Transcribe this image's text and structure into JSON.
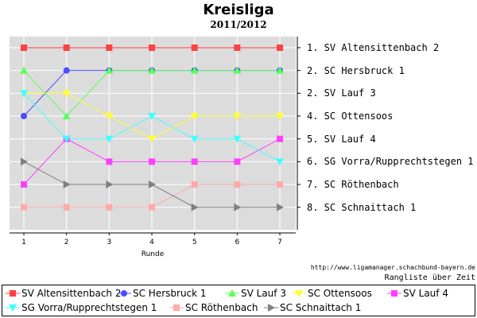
{
  "chart_data": {
    "type": "line",
    "title": "Kreisliga",
    "subtitle": "2011/2012",
    "xlabel": "Runde",
    "ylabel": "",
    "x": [
      1,
      2,
      3,
      4,
      5,
      6,
      7
    ],
    "ylim": [
      1,
      9
    ],
    "y_inverted": true,
    "grid": true,
    "legend_position": "bottom",
    "series": [
      {
        "name": "SV Altensittenbach 2",
        "color": "#ff4040",
        "marker": "square",
        "values": [
          1,
          1,
          1,
          1,
          1,
          1,
          1
        ]
      },
      {
        "name": "SC Hersbruck 1",
        "color": "#4d4dff",
        "marker": "circle",
        "values": [
          4,
          2,
          2,
          2,
          2,
          2,
          2
        ]
      },
      {
        "name": "SV Lauf 3",
        "color": "#5aff5a",
        "marker": "triangle-up",
        "values": [
          2,
          4,
          2,
          2,
          2,
          2,
          2
        ]
      },
      {
        "name": "SC Ottensoos",
        "color": "#ffff33",
        "marker": "triangle-down",
        "values": [
          3,
          3,
          4,
          5,
          4,
          4,
          4
        ]
      },
      {
        "name": "SV Lauf 4",
        "color": "#ff40ff",
        "marker": "square",
        "values": [
          7,
          5,
          6,
          6,
          6,
          6,
          5
        ]
      },
      {
        "name": "SG Vorra/Rupprechtstegen 1",
        "color": "#40ffff",
        "marker": "triangle-down",
        "values": [
          3,
          5,
          5,
          4,
          5,
          5,
          6
        ]
      },
      {
        "name": "SC Röthenbach",
        "color": "#ffaaaa",
        "marker": "square",
        "values": [
          8,
          8,
          8,
          8,
          7,
          7,
          7
        ]
      },
      {
        "name": "SC Schnaittach 1",
        "color": "#808080",
        "marker": "triangle-right",
        "values": [
          6,
          7,
          7,
          7,
          8,
          8,
          8
        ]
      }
    ],
    "final_ranking": [
      "1. SV Altensittenbach 2",
      "2. SC Hersbruck 1",
      "2. SV Lauf 3",
      "4. SC Ottensoos",
      "5. SV Lauf 4",
      "6. SG Vorra/Rupprechtstegen 1",
      "7. SC Röthenbach",
      "8. SC Schnaittach 1"
    ]
  },
  "footer": {
    "url": "http://www.ligamanager.schachbund-bayern.de",
    "caption": "Rangliste über Zeit"
  }
}
